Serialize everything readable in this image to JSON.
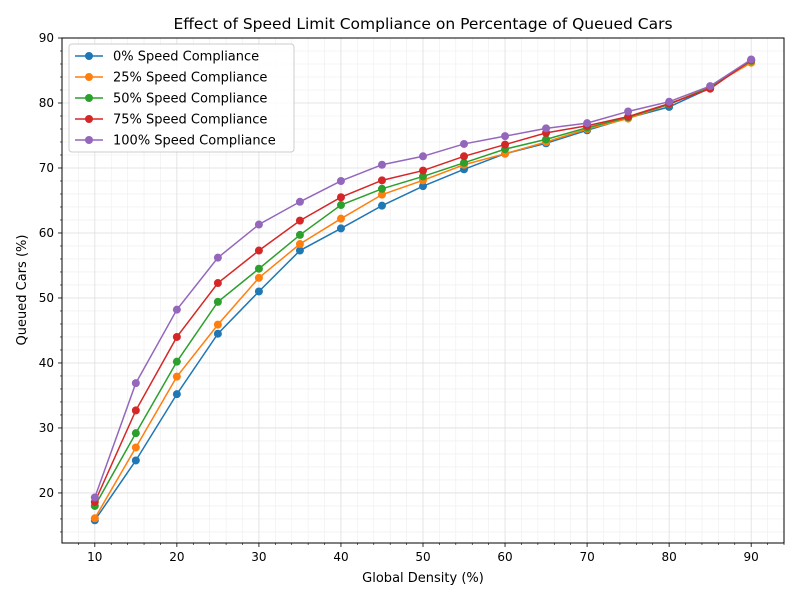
{
  "chart_data": {
    "type": "line",
    "title": "Effect of Speed Limit Compliance on Percentage of Queued Cars",
    "xlabel": "Global Density (%)",
    "ylabel": "Queued Cars (%)",
    "xlim": [
      6,
      94
    ],
    "ylim": [
      12.3,
      90
    ],
    "xticks": [
      10,
      20,
      30,
      40,
      50,
      60,
      70,
      80,
      90
    ],
    "yticks": [
      20,
      30,
      40,
      50,
      60,
      70,
      80,
      90
    ],
    "grid": true,
    "legend_position": "upper-left",
    "x": [
      10,
      15,
      20,
      25,
      30,
      35,
      40,
      45,
      50,
      55,
      60,
      65,
      70,
      75,
      80,
      85,
      90
    ],
    "series": [
      {
        "name": "0% Speed Compliance",
        "color": "#1f77b4",
        "values": [
          15.8,
          25.0,
          35.2,
          44.5,
          51.0,
          57.3,
          60.7,
          64.2,
          67.2,
          69.8,
          72.2,
          73.8,
          75.8,
          77.7,
          79.4,
          82.3,
          86.6
        ]
      },
      {
        "name": "25% Speed Compliance",
        "color": "#ff7f0e",
        "values": [
          16.1,
          27.0,
          37.9,
          45.9,
          53.1,
          58.3,
          62.2,
          65.9,
          68.1,
          70.5,
          72.2,
          74.0,
          76.0,
          77.6,
          79.8,
          82.5,
          86.2
        ]
      },
      {
        "name": "50% Speed Compliance",
        "color": "#2ca02c",
        "values": [
          18.0,
          29.2,
          40.2,
          49.4,
          54.5,
          59.7,
          64.3,
          66.8,
          68.7,
          70.8,
          72.9,
          74.4,
          76.2,
          77.8,
          79.8,
          82.4,
          86.5
        ]
      },
      {
        "name": "75% Speed Compliance",
        "color": "#d62728",
        "values": [
          18.6,
          32.7,
          44.0,
          52.3,
          57.3,
          61.9,
          65.5,
          68.1,
          69.6,
          71.8,
          73.6,
          75.4,
          76.5,
          77.9,
          79.9,
          82.2,
          86.6
        ]
      },
      {
        "name": "100% Speed Compliance",
        "color": "#9467bd",
        "values": [
          19.3,
          36.9,
          48.2,
          56.2,
          61.3,
          64.8,
          68.0,
          70.5,
          71.8,
          73.7,
          74.9,
          76.1,
          76.9,
          78.7,
          80.2,
          82.6,
          86.7
        ]
      }
    ]
  }
}
